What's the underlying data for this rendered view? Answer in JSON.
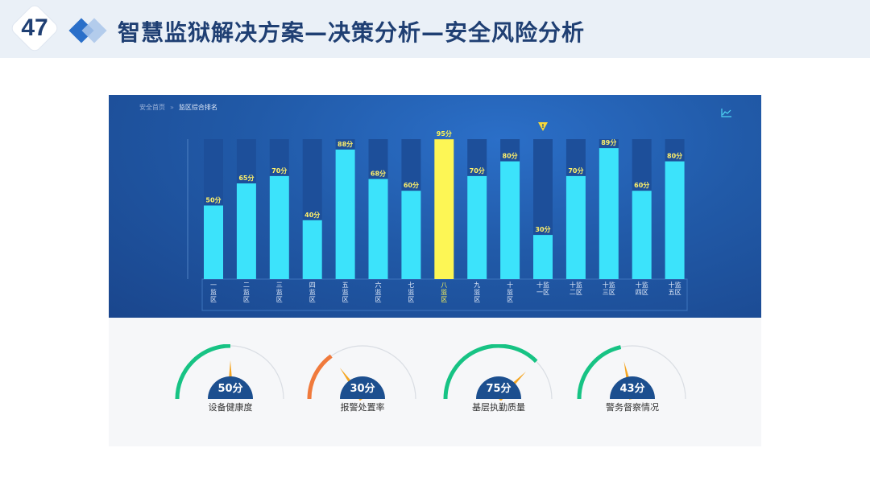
{
  "slide": {
    "page_number": "47",
    "title": "智慧监狱解决方案—决策分析—安全风险分析"
  },
  "breadcrumb": {
    "home": "安全首页",
    "separator": "»",
    "current": "监区综合排名"
  },
  "icons": {
    "chart_toggle": "line-chart-icon",
    "warning_marker": "warning-icon"
  },
  "colors": {
    "bar": "#3ce3fb",
    "bar_highlight": "#fdf655",
    "bar_track": "#1d4f9a",
    "gauge_normal": "#17c384",
    "gauge_alert": "#f07a3c",
    "gauge_needle": "#f5a623",
    "gauge_badge": "#1c4f8f"
  },
  "chart_data": {
    "type": "bar",
    "categories": [
      "一监区",
      "二监区",
      "三监区",
      "四监区",
      "五监区",
      "六监区",
      "七监区",
      "八监区",
      "九监区",
      "十监区",
      "十一监区",
      "十二监区",
      "十三监区",
      "十四监区",
      "十五监区"
    ],
    "values": [
      50,
      65,
      70,
      40,
      88,
      68,
      60,
      95,
      70,
      80,
      30,
      70,
      89,
      60,
      80
    ],
    "value_labels": [
      "50分",
      "65分",
      "70分",
      "40分",
      "88分",
      "68分",
      "60分",
      "95分",
      "70分",
      "80分",
      "30分",
      "70分",
      "89分",
      "60分",
      "80分"
    ],
    "highlight_index": 7,
    "warning_index": 10,
    "ylim": [
      0,
      100
    ],
    "grid": false
  },
  "gauges": [
    {
      "value": 50,
      "value_label": "50分",
      "label": "设备健康度",
      "status": "normal"
    },
    {
      "value": 30,
      "value_label": "30分",
      "label": "报警处置率",
      "status": "alert"
    },
    {
      "value": 75,
      "value_label": "75分",
      "label": "基层执勤质量",
      "status": "normal"
    },
    {
      "value": 43,
      "value_label": "43分",
      "label": "警务督察情况",
      "status": "normal"
    }
  ]
}
